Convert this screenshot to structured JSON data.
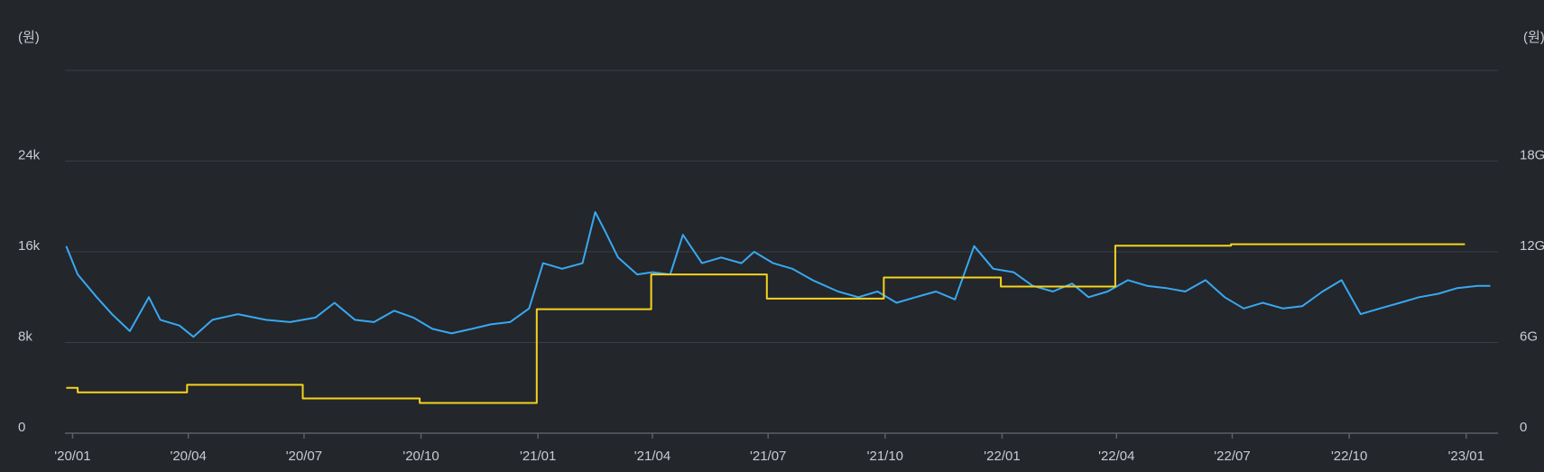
{
  "colors": {
    "background": "#23262b",
    "price_line": "#38a8f0",
    "step_line": "#f5d31e",
    "grid": "#3a3e45",
    "text": "#c8ccd2"
  },
  "chart_data": {
    "type": "line",
    "left_axis": {
      "unit": "(원)",
      "ticks": [
        "0",
        "8k",
        "16k",
        "24k"
      ],
      "range": [
        0,
        32000
      ]
    },
    "right_axis": {
      "unit": "(원)",
      "ticks": [
        "0",
        "6G",
        "12G",
        "18G"
      ],
      "range": [
        0,
        24
      ]
    },
    "x_ticks": [
      "'20/01",
      "'20/04",
      "'20/07",
      "'20/10",
      "'21/01",
      "'21/04",
      "'21/07",
      "'21/10",
      "'22/01",
      "'22/04",
      "'22/07",
      "'22/10",
      "'23/01"
    ],
    "grid": true,
    "series": [
      {
        "axis": "left",
        "color": "#38a8f0",
        "x": [
          "2019-12-27",
          "2020-01-05",
          "2020-01-20",
          "2020-02-01",
          "2020-02-15",
          "2020-03-01",
          "2020-03-10",
          "2020-03-25",
          "2020-04-05",
          "2020-04-20",
          "2020-05-10",
          "2020-06-01",
          "2020-06-20",
          "2020-07-10",
          "2020-07-25",
          "2020-08-10",
          "2020-08-25",
          "2020-09-10",
          "2020-09-25",
          "2020-10-10",
          "2020-10-25",
          "2020-11-10",
          "2020-11-25",
          "2020-12-10",
          "2020-12-25",
          "2021-01-05",
          "2021-01-20",
          "2021-02-05",
          "2021-02-15",
          "2021-02-22",
          "2021-03-05",
          "2021-03-20",
          "2021-04-01",
          "2021-04-15",
          "2021-04-25",
          "2021-05-10",
          "2021-05-25",
          "2021-06-10",
          "2021-06-20",
          "2021-07-05",
          "2021-07-20",
          "2021-08-05",
          "2021-08-25",
          "2021-09-10",
          "2021-09-25",
          "2021-10-10",
          "2021-10-25",
          "2021-11-10",
          "2021-11-25",
          "2021-12-10",
          "2021-12-25",
          "2022-01-10",
          "2022-01-25",
          "2022-02-10",
          "2022-02-25",
          "2022-03-10",
          "2022-03-25",
          "2022-04-10",
          "2022-04-25",
          "2022-05-10",
          "2022-05-25",
          "2022-06-10",
          "2022-06-25",
          "2022-07-10",
          "2022-07-25",
          "2022-08-10",
          "2022-08-25",
          "2022-09-10",
          "2022-09-25",
          "2022-10-10",
          "2022-10-25",
          "2022-11-10",
          "2022-11-25",
          "2022-12-10",
          "2022-12-25",
          "2023-01-10",
          "2023-01-20"
        ],
        "values": [
          16500,
          14000,
          12000,
          10500,
          9000,
          12000,
          10000,
          9500,
          8500,
          10000,
          10500,
          10000,
          9800,
          10200,
          11500,
          10000,
          9800,
          10800,
          10200,
          9200,
          8800,
          9200,
          9600,
          9800,
          11000,
          15000,
          14500,
          15000,
          19500,
          18000,
          15500,
          14000,
          14200,
          14000,
          17500,
          15000,
          15500,
          15000,
          16000,
          15000,
          14500,
          13500,
          12500,
          12000,
          12500,
          11500,
          12000,
          12500,
          11800,
          16500,
          14500,
          14200,
          13000,
          12500,
          13200,
          12000,
          12500,
          13500,
          13000,
          12800,
          12500,
          13500,
          12000,
          11000,
          11500,
          11000,
          11200,
          12500,
          13500,
          10500,
          11000,
          11500,
          12000,
          12300,
          12800,
          13000,
          13000
        ]
      },
      {
        "axis": "right",
        "color": "#f5d31e",
        "x": [
          "2019-12-27",
          "2020-01-05",
          "2020-03-31",
          "2020-06-30",
          "2020-09-30",
          "2020-12-31",
          "2021-03-31",
          "2021-06-30",
          "2021-09-30",
          "2021-12-31",
          "2022-03-31",
          "2022-06-30",
          "2022-09-30"
        ],
        "values": [
          3.0,
          2.7,
          3.2,
          2.3,
          2.0,
          8.2,
          10.5,
          8.9,
          10.3,
          9.7,
          12.4,
          12.5,
          12.5
        ]
      }
    ]
  }
}
